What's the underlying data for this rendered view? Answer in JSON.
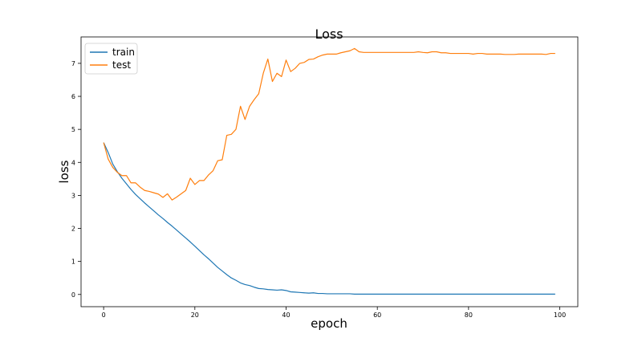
{
  "chart_data": {
    "type": "line",
    "title": "Loss",
    "xlabel": "epoch",
    "ylabel": "loss",
    "xlim": [
      -4.95,
      103.95
    ],
    "ylim": [
      -0.37,
      7.8
    ],
    "xticks": [
      0,
      20,
      40,
      60,
      80,
      100
    ],
    "yticks": [
      0,
      1,
      2,
      3,
      4,
      5,
      6,
      7
    ],
    "grid": false,
    "legend_position": "top-left",
    "series": [
      {
        "name": "train",
        "color": "#1f77b4",
        "x": [
          0,
          1,
          2,
          3,
          4,
          5,
          6,
          7,
          8,
          9,
          10,
          11,
          12,
          13,
          14,
          15,
          16,
          17,
          18,
          19,
          20,
          21,
          22,
          23,
          24,
          25,
          26,
          27,
          28,
          29,
          30,
          31,
          32,
          33,
          34,
          35,
          36,
          37,
          38,
          39,
          40,
          41,
          42,
          43,
          44,
          45,
          46,
          47,
          48,
          49,
          50,
          51,
          52,
          53,
          54,
          55,
          56,
          57,
          58,
          59,
          60,
          61,
          62,
          63,
          64,
          65,
          66,
          67,
          68,
          69,
          70,
          71,
          72,
          73,
          74,
          75,
          76,
          77,
          78,
          79,
          80,
          81,
          82,
          83,
          84,
          85,
          86,
          87,
          88,
          89,
          90,
          91,
          92,
          93,
          94,
          95,
          96,
          97,
          98,
          99
        ],
        "y": [
          4.6,
          4.3,
          3.95,
          3.72,
          3.52,
          3.35,
          3.18,
          3.03,
          2.9,
          2.77,
          2.65,
          2.53,
          2.41,
          2.3,
          2.18,
          2.07,
          1.95,
          1.83,
          1.71,
          1.59,
          1.46,
          1.33,
          1.2,
          1.08,
          0.95,
          0.82,
          0.71,
          0.6,
          0.5,
          0.43,
          0.35,
          0.3,
          0.27,
          0.22,
          0.18,
          0.17,
          0.15,
          0.14,
          0.13,
          0.14,
          0.12,
          0.08,
          0.07,
          0.06,
          0.05,
          0.04,
          0.05,
          0.03,
          0.03,
          0.02,
          0.02,
          0.02,
          0.02,
          0.02,
          0.02,
          0.01,
          0.01,
          0.01,
          0.01,
          0.01,
          0.01,
          0.01,
          0.01,
          0.01,
          0.01,
          0.01,
          0.01,
          0.01,
          0.01,
          0.01,
          0.01,
          0.01,
          0.01,
          0.01,
          0.01,
          0.01,
          0.01,
          0.01,
          0.01,
          0.01,
          0.01,
          0.01,
          0.01,
          0.01,
          0.01,
          0.01,
          0.01,
          0.01,
          0.01,
          0.01,
          0.01,
          0.01,
          0.01,
          0.01,
          0.01,
          0.01,
          0.01,
          0.01,
          0.01,
          0.01
        ]
      },
      {
        "name": "test",
        "color": "#ff7f0e",
        "x": [
          0,
          1,
          2,
          3,
          4,
          5,
          6,
          7,
          8,
          9,
          10,
          11,
          12,
          13,
          14,
          15,
          16,
          17,
          18,
          19,
          20,
          21,
          22,
          23,
          24,
          25,
          26,
          27,
          28,
          29,
          30,
          31,
          32,
          33,
          34,
          35,
          36,
          37,
          38,
          39,
          40,
          41,
          42,
          43,
          44,
          45,
          46,
          47,
          48,
          49,
          50,
          51,
          52,
          53,
          54,
          55,
          56,
          57,
          58,
          59,
          60,
          61,
          62,
          63,
          64,
          65,
          66,
          67,
          68,
          69,
          70,
          71,
          72,
          73,
          74,
          75,
          76,
          77,
          78,
          79,
          80,
          81,
          82,
          83,
          84,
          85,
          86,
          87,
          88,
          89,
          90,
          91,
          92,
          93,
          94,
          95,
          96,
          97,
          98,
          99
        ],
        "y": [
          4.6,
          4.1,
          3.85,
          3.7,
          3.6,
          3.6,
          3.38,
          3.38,
          3.25,
          3.15,
          3.12,
          3.08,
          3.04,
          2.94,
          3.05,
          2.86,
          2.95,
          3.05,
          3.15,
          3.52,
          3.33,
          3.45,
          3.45,
          3.62,
          3.75,
          4.05,
          4.08,
          4.82,
          4.85,
          5.0,
          5.7,
          5.3,
          5.7,
          5.9,
          6.08,
          6.7,
          7.13,
          6.45,
          6.7,
          6.6,
          7.1,
          6.75,
          6.85,
          7.0,
          7.03,
          7.12,
          7.13,
          7.2,
          7.25,
          7.28,
          7.28,
          7.28,
          7.32,
          7.35,
          7.38,
          7.45,
          7.35,
          7.33,
          7.33,
          7.33,
          7.33,
          7.33,
          7.33,
          7.33,
          7.33,
          7.33,
          7.33,
          7.33,
          7.33,
          7.35,
          7.33,
          7.32,
          7.35,
          7.35,
          7.32,
          7.32,
          7.3,
          7.3,
          7.3,
          7.3,
          7.3,
          7.28,
          7.3,
          7.3,
          7.28,
          7.28,
          7.28,
          7.28,
          7.27,
          7.27,
          7.27,
          7.28,
          7.28,
          7.28,
          7.28,
          7.28,
          7.28,
          7.27,
          7.3,
          7.3
        ]
      }
    ]
  }
}
